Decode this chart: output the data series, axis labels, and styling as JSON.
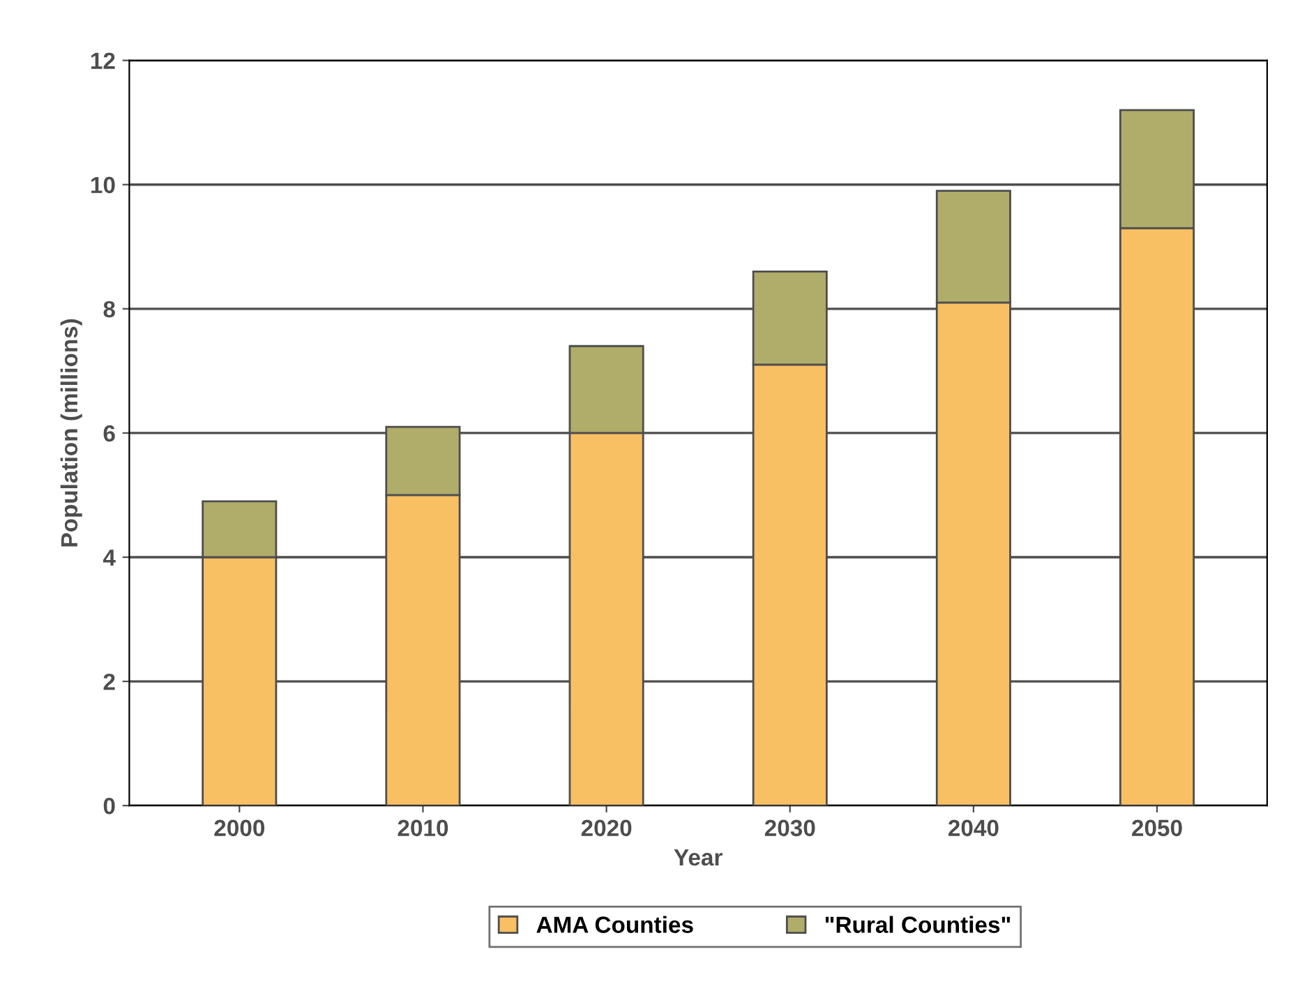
{
  "chart_data": {
    "type": "bar",
    "stacked": true,
    "xlabel": "Year",
    "ylabel": "Population (millions)",
    "categories": [
      "2000",
      "2010",
      "2020",
      "2030",
      "2040",
      "2050"
    ],
    "series": [
      {
        "name": "AMA Counties",
        "color": "#f9bf63",
        "values": [
          4.0,
          5.0,
          6.0,
          7.1,
          8.1,
          9.3
        ]
      },
      {
        "name": "\"Rural Counties\"",
        "color": "#b0ad6a",
        "values": [
          0.9,
          1.1,
          1.4,
          1.5,
          1.8,
          1.9
        ]
      }
    ],
    "ylim": [
      0,
      12
    ],
    "yticks": [
      0,
      2,
      4,
      6,
      8,
      10,
      12
    ],
    "grid": "y",
    "legend": "bottom"
  }
}
